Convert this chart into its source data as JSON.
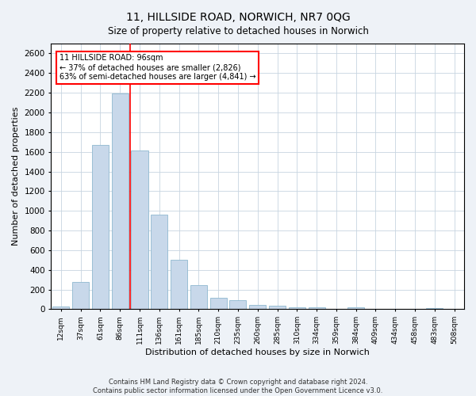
{
  "title": "11, HILLSIDE ROAD, NORWICH, NR7 0QG",
  "subtitle": "Size of property relative to detached houses in Norwich",
  "xlabel": "Distribution of detached houses by size in Norwich",
  "ylabel": "Number of detached properties",
  "categories": [
    "12sqm",
    "37sqm",
    "61sqm",
    "86sqm",
    "111sqm",
    "136sqm",
    "161sqm",
    "185sqm",
    "210sqm",
    "235sqm",
    "260sqm",
    "285sqm",
    "310sqm",
    "334sqm",
    "359sqm",
    "384sqm",
    "409sqm",
    "434sqm",
    "458sqm",
    "483sqm",
    "508sqm"
  ],
  "values": [
    30,
    280,
    1670,
    2190,
    1610,
    960,
    500,
    245,
    120,
    90,
    40,
    35,
    20,
    20,
    5,
    20,
    5,
    5,
    5,
    15,
    5
  ],
  "bar_color": "#c8d8ea",
  "bar_edge_color": "#8fb8d0",
  "red_line_x": 3.5,
  "annotation_text": "11 HILLSIDE ROAD: 96sqm\n← 37% of detached houses are smaller (2,826)\n63% of semi-detached houses are larger (4,841) →",
  "annotation_box_color": "white",
  "annotation_box_edge_color": "red",
  "ylim": [
    0,
    2700
  ],
  "yticks": [
    0,
    200,
    400,
    600,
    800,
    1000,
    1200,
    1400,
    1600,
    1800,
    2000,
    2200,
    2400,
    2600
  ],
  "footer1": "Contains HM Land Registry data © Crown copyright and database right 2024.",
  "footer2": "Contains public sector information licensed under the Open Government Licence v3.0.",
  "bg_color": "#eef2f7",
  "plot_bg_color": "#ffffff",
  "grid_color": "#c8d4e0"
}
